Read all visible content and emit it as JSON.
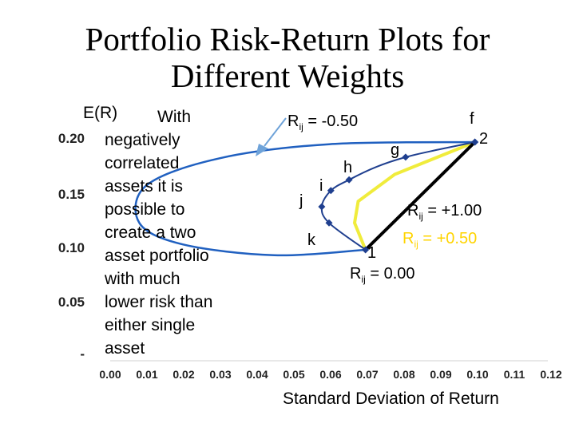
{
  "title_line1": "Portfolio Risk-Return Plots for",
  "title_line2": "Different Weights",
  "note": {
    "first": "With",
    "lines": [
      "negatively",
      "correlated",
      "assets it is",
      "possible to",
      "create a two",
      "asset portfolio",
      "with much",
      "lower risk than",
      "either single",
      "asset"
    ]
  },
  "colors": {
    "curve_neg": "#1f3f8f",
    "curve_zero": "#2060c0",
    "line_050": "#f0ec3c",
    "line_100": "#000000",
    "arrow": "#6fa3d9"
  },
  "chart_data": {
    "type": "line",
    "ylabel": "E(R)",
    "xlabel": "Standard Deviation of Return",
    "xlim": [
      0.0,
      0.12
    ],
    "ylim": [
      0.0,
      0.2
    ],
    "x_ticks": [
      "0.00",
      "0.01",
      "0.02",
      "0.03",
      "0.04",
      "0.05",
      "0.06",
      "0.07",
      "0.08",
      "0.09",
      "0.10",
      "0.11",
      "0.12"
    ],
    "y_ticks": [
      "-",
      "0.05",
      "0.10",
      "0.15",
      "0.20"
    ],
    "assets": [
      {
        "name": "1",
        "sd": 0.07,
        "er": 0.1
      },
      {
        "name": "2",
        "sd": 0.1,
        "er": 0.2
      }
    ],
    "series": [
      {
        "name": "R_ij = 0.00",
        "points": [
          [
            0.07,
            0.1
          ],
          [
            0.06,
            0.125
          ],
          [
            0.058,
            0.14
          ],
          [
            0.0605,
            0.155
          ],
          [
            0.0655,
            0.165
          ],
          [
            0.073,
            0.177
          ],
          [
            0.081,
            0.186
          ],
          [
            0.09,
            0.193
          ],
          [
            0.1,
            0.2
          ]
        ]
      },
      {
        "name": "R_ij = +0.50",
        "points": [
          [
            0.07,
            0.1
          ],
          [
            0.067,
            0.125
          ],
          [
            0.068,
            0.145
          ],
          [
            0.078,
            0.17
          ],
          [
            0.1,
            0.2
          ]
        ]
      },
      {
        "name": "R_ij = +1.00",
        "points": [
          [
            0.07,
            0.1
          ],
          [
            0.1,
            0.2
          ]
        ]
      },
      {
        "name": "R_ij = -0.50",
        "points": [
          [
            0.07,
            0.1
          ],
          [
            0.045,
            0.095
          ],
          [
            0.02,
            0.105
          ],
          [
            0.008,
            0.125
          ],
          [
            0.01,
            0.16
          ],
          [
            0.03,
            0.185
          ],
          [
            0.06,
            0.198
          ],
          [
            0.1,
            0.2
          ]
        ]
      }
    ],
    "markers": [
      {
        "name": "f",
        "sd": 0.1,
        "er": 0.2
      },
      {
        "name": "g",
        "sd": 0.081,
        "er": 0.186
      },
      {
        "name": "h",
        "sd": 0.0655,
        "er": 0.165
      },
      {
        "name": "i",
        "sd": 0.0605,
        "er": 0.155
      },
      {
        "name": "j",
        "sd": 0.058,
        "er": 0.14
      },
      {
        "name": "k",
        "sd": 0.06,
        "er": 0.125
      }
    ],
    "annotations": {
      "r_neg050": {
        "base": "R",
        "sub": "ij",
        "text": " = -0.50"
      },
      "r_000": {
        "base": "R",
        "sub": "ij",
        "text": " = 0.00"
      },
      "r_100": {
        "base": "R",
        "sub": "ij",
        "text": " = +1.00"
      },
      "r_050": {
        "base": "R",
        "sub": "ij",
        "text": " = +0.50"
      }
    }
  }
}
